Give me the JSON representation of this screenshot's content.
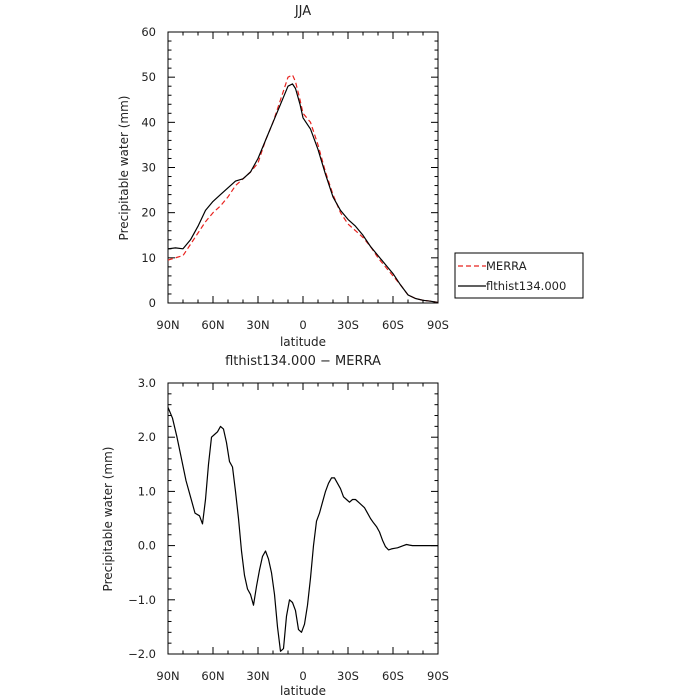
{
  "chart_data": [
    {
      "type": "line",
      "title": "JJA",
      "xlabel": "latitude",
      "ylabel": "Precipitable water (mm)",
      "xlim": [
        90,
        -90
      ],
      "ylim": [
        0,
        60
      ],
      "x_ticks": [
        90,
        60,
        30,
        0,
        -30,
        -60,
        -90
      ],
      "x_tick_labels": [
        "90N",
        "60N",
        "30N",
        "0",
        "30S",
        "60S",
        "90S"
      ],
      "y_ticks": [
        0,
        10,
        20,
        30,
        40,
        50,
        60
      ],
      "y_tick_labels": [
        "0",
        "10",
        "20",
        "30",
        "40",
        "50",
        "60"
      ],
      "grid": false,
      "legend": "right",
      "series": [
        {
          "name": "MERRA",
          "color": "#e8231f",
          "style": "dashed",
          "x": [
            90,
            85,
            80,
            75,
            70,
            65,
            60,
            55,
            50,
            45,
            40,
            35,
            30,
            25,
            20,
            15,
            10,
            7,
            5,
            2,
            0,
            -5,
            -10,
            -15,
            -20,
            -25,
            -30,
            -35,
            -40,
            -45,
            -50,
            -55,
            -60,
            -65,
            -70,
            -75,
            -80,
            -85,
            -90
          ],
          "y": [
            9.5,
            10.0,
            10.5,
            13.0,
            15.5,
            18.0,
            20.0,
            21.5,
            23.5,
            26.0,
            27.5,
            29.0,
            31.0,
            36.0,
            40.0,
            45.0,
            50.0,
            50.5,
            49.0,
            45.0,
            42.0,
            40.0,
            35.0,
            29.0,
            24.0,
            20.0,
            17.5,
            16.0,
            14.5,
            12.5,
            10.0,
            8.0,
            6.0,
            4.0,
            1.8,
            1.0,
            0.6,
            0.4,
            0.1
          ]
        },
        {
          "name": "flthist134.000",
          "color": "#000000",
          "style": "solid",
          "x": [
            90,
            85,
            80,
            75,
            70,
            65,
            60,
            55,
            50,
            45,
            40,
            35,
            30,
            25,
            20,
            15,
            10,
            7,
            5,
            2,
            0,
            -5,
            -10,
            -15,
            -20,
            -25,
            -30,
            -35,
            -40,
            -45,
            -50,
            -55,
            -60,
            -65,
            -70,
            -75,
            -80,
            -85,
            -90
          ],
          "y": [
            12.0,
            12.2,
            12.0,
            14.0,
            17.0,
            20.5,
            22.5,
            24.0,
            25.5,
            27.0,
            27.5,
            29.0,
            32.0,
            36.0,
            40.0,
            44.0,
            48.0,
            48.5,
            47.5,
            44.0,
            41.0,
            38.5,
            34.0,
            28.5,
            23.5,
            20.5,
            18.5,
            17.0,
            15.0,
            12.5,
            10.5,
            8.5,
            6.5,
            4.0,
            1.8,
            1.0,
            0.6,
            0.4,
            0.1
          ]
        }
      ]
    },
    {
      "type": "line",
      "title": "flthist134.000 − MERRA",
      "xlabel": "latitude",
      "ylabel": "Precipitable water (mm)",
      "xlim": [
        90,
        -90
      ],
      "ylim": [
        -2.0,
        3.0
      ],
      "x_ticks": [
        90,
        60,
        30,
        0,
        -30,
        -60,
        -90
      ],
      "x_tick_labels": [
        "90N",
        "60N",
        "30N",
        "0",
        "30S",
        "60S",
        "90S"
      ],
      "y_ticks": [
        -2.0,
        -1.0,
        0.0,
        1.0,
        2.0,
        3.0
      ],
      "y_tick_labels": [
        "−2.0",
        "−1.0",
        "0.0",
        "1.0",
        "2.0",
        "3.0"
      ],
      "grid": false,
      "legend": "none",
      "series": [
        {
          "color": "#000000",
          "style": "solid",
          "x": [
            90,
            87,
            84,
            81,
            78,
            75,
            72,
            69,
            67,
            65,
            63,
            61,
            59,
            57,
            55,
            53,
            51,
            49,
            47,
            45,
            43,
            41,
            39,
            37,
            35,
            33,
            31,
            29,
            27,
            25,
            23,
            21,
            19,
            17,
            15,
            13,
            11,
            9,
            7,
            5,
            3,
            1,
            -1,
            -3,
            -5,
            -7,
            -9,
            -11,
            -13,
            -15,
            -17,
            -19,
            -21,
            -23,
            -25,
            -27,
            -29,
            -31,
            -33,
            -35,
            -37,
            -39,
            -41,
            -43,
            -45,
            -47,
            -49,
            -51,
            -53,
            -55,
            -57,
            -59,
            -61,
            -63,
            -65,
            -67,
            -69,
            -71,
            -73,
            -75,
            -77,
            -79,
            -81,
            -83,
            -85,
            -87,
            -90
          ],
          "y": [
            2.55,
            2.35,
            2.0,
            1.6,
            1.2,
            0.9,
            0.6,
            0.55,
            0.4,
            0.85,
            1.5,
            2.0,
            2.05,
            2.1,
            2.2,
            2.15,
            1.9,
            1.55,
            1.45,
            1.0,
            0.5,
            -0.1,
            -0.55,
            -0.8,
            -0.9,
            -1.1,
            -0.75,
            -0.45,
            -0.2,
            -0.1,
            -0.25,
            -0.5,
            -0.9,
            -1.5,
            -1.95,
            -1.9,
            -1.3,
            -1.0,
            -1.05,
            -1.2,
            -1.55,
            -1.6,
            -1.45,
            -1.1,
            -0.6,
            0.0,
            0.45,
            0.6,
            0.8,
            1.0,
            1.15,
            1.25,
            1.25,
            1.15,
            1.05,
            0.9,
            0.85,
            0.8,
            0.85,
            0.85,
            0.8,
            0.75,
            0.7,
            0.6,
            0.5,
            0.42,
            0.35,
            0.25,
            0.1,
            -0.02,
            -0.08,
            -0.06,
            -0.05,
            -0.04,
            -0.02,
            0.0,
            0.02,
            0.01,
            0.0,
            0.0,
            0.0,
            0.0,
            0.0,
            0.0,
            0.0,
            0.0,
            0.0
          ]
        }
      ]
    }
  ]
}
